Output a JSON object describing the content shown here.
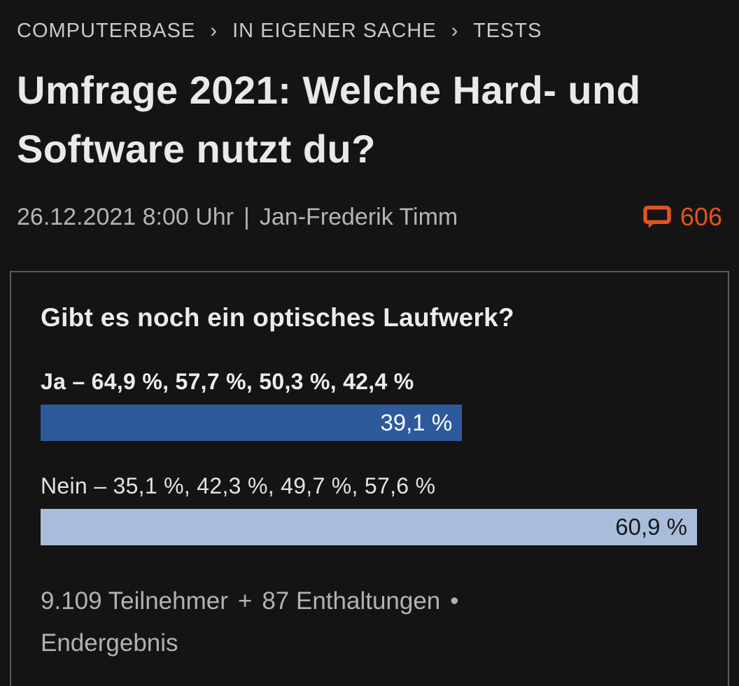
{
  "colors": {
    "background": "#141414",
    "accent_orange": "#e5531e",
    "bar_primary": "#2d5a9b",
    "bar_secondary": "#a9bddb",
    "box_border": "#595b5d"
  },
  "breadcrumb": {
    "separator": "›",
    "items": [
      {
        "label": "COMPUTERBASE"
      },
      {
        "label": "IN EIGENER SACHE"
      },
      {
        "label": "TESTS"
      }
    ]
  },
  "header": {
    "title": "Umfrage 2021: Welche Hard- und Software nutzt du?",
    "date": "26.12.2021 8:00 Uhr",
    "separator": "|",
    "author": "Jan-Frederik Timm",
    "comments_count": "606"
  },
  "poll": {
    "question": "Gibt es noch ein optisches Laufwerk?",
    "options": [
      {
        "label": "Ja – 64,9 %, 57,7 %, 50,3 %, 42,4 %",
        "value": 39.1,
        "value_label": "39,1 %",
        "bar_width_pct": 64.2
      },
      {
        "label": "Nein – 35,1 %, 42,3 %, 49,7 %, 57,6 %",
        "value": 60.9,
        "value_label": "60,9 %",
        "bar_width_pct": 100
      }
    ],
    "footer": {
      "participants": "9.109 Teilnehmer",
      "plus": "+",
      "abstentions": "87 Enthaltungen",
      "bullet": "•",
      "result": "Endergebnis"
    }
  },
  "chart_data": {
    "type": "bar",
    "orientation": "horizontal",
    "title": "Gibt es noch ein optisches Laufwerk?",
    "categories": [
      "Ja",
      "Nein"
    ],
    "values": [
      39.1,
      60.9
    ],
    "value_labels": [
      "39,1 %",
      "60,9 %"
    ],
    "historical_values": {
      "Ja": [
        64.9,
        57.7,
        50.3,
        42.4
      ],
      "Nein": [
        35.1,
        42.3,
        49.7,
        57.6
      ]
    },
    "xlim": [
      0,
      60.9
    ],
    "annotations": [
      "9.109 Teilnehmer",
      "87 Enthaltungen",
      "Endergebnis"
    ]
  }
}
